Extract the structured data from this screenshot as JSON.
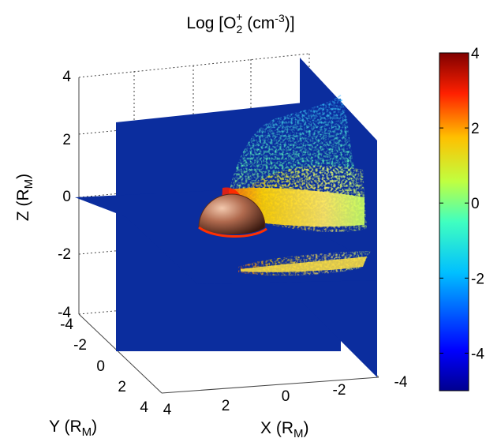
{
  "chart_data": {
    "type": "heatmap",
    "title": "Log [O2+ (cm-3)]",
    "title_parts": {
      "main": "Log [O",
      "sub": "2",
      "sup": "+",
      "mid": " (cm",
      "unit_sup": "-3",
      "end": ")]"
    },
    "axes": {
      "x": {
        "label": "X (R",
        "label_sub": "M",
        "label_end": ")",
        "range": [
          -4,
          4
        ],
        "ticks": [
          "4",
          "2",
          "0",
          "-2",
          "-4"
        ]
      },
      "y": {
        "label": "Y (R",
        "label_sub": "M",
        "label_end": ")",
        "range": [
          -4,
          4
        ],
        "ticks": [
          "-4",
          "-2",
          "0",
          "2",
          "4"
        ]
      },
      "z": {
        "label": "Z (R",
        "label_sub": "M",
        "label_end": ")",
        "range": [
          -4,
          4
        ],
        "ticks": [
          "4",
          "2",
          "0",
          "-2",
          "-4"
        ]
      }
    },
    "colorbar": {
      "range": [
        -5,
        4
      ],
      "ticks": [
        "4",
        "2",
        "0",
        "-2",
        "-4"
      ],
      "tick_values": [
        4,
        2,
        0,
        -2,
        -4
      ],
      "colormap": "jet"
    },
    "grid": true,
    "colors": {
      "background_plane": "#0b2d9e",
      "planet": "#b56a4e",
      "high": "#ff2000",
      "mid": "#ffe040",
      "low": "#30d0ff"
    }
  }
}
